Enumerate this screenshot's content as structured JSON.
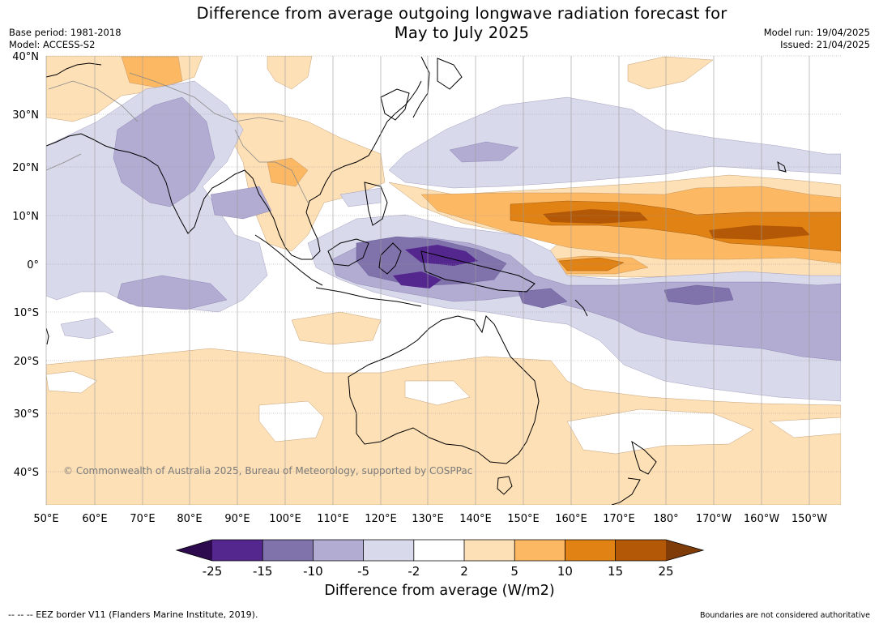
{
  "title": {
    "line1": "Difference from average outgoing longwave radiation forecast for",
    "line2": "May to July 2025"
  },
  "meta": {
    "base_period": "Base period: 1981-2018",
    "model": "Model: ACCESS-S2",
    "model_run": "Model run: 19/04/2025",
    "issued": "Issued: 21/04/2025"
  },
  "lat_labels": [
    "40°N",
    "30°N",
    "20°N",
    "10°N",
    "0°",
    "10°S",
    "20°S",
    "30°S",
    "40°S"
  ],
  "lon_labels": [
    "50°E",
    "60°E",
    "70°E",
    "80°E",
    "90°E",
    "100°E",
    "110°E",
    "120°E",
    "130°E",
    "140°E",
    "150°E",
    "160°E",
    "170°E",
    "180°",
    "170°W",
    "160°W",
    "150°W"
  ],
  "copyright": "© Commonwealth of Australia 2025, Bureau of Meteorology, supported by COSPPac",
  "colorbar": {
    "ticks": [
      "-25",
      "-15",
      "-10",
      "-5",
      "-2",
      "2",
      "5",
      "10",
      "15",
      "25"
    ],
    "colors": [
      "#2d0a4e",
      "#54278f",
      "#8073ac",
      "#b2abd2",
      "#d8daeb",
      "#ffffff",
      "#fee0b6",
      "#fdb863",
      "#e08214",
      "#b35806",
      "#7f3b08"
    ],
    "label": "Difference from average (W/m2)"
  },
  "footer": {
    "eez": "--  --  -- EEZ border V11 (Flanders Marine Institute, 2019).",
    "boundaries": "Boundaries are not considered authoritative"
  }
}
